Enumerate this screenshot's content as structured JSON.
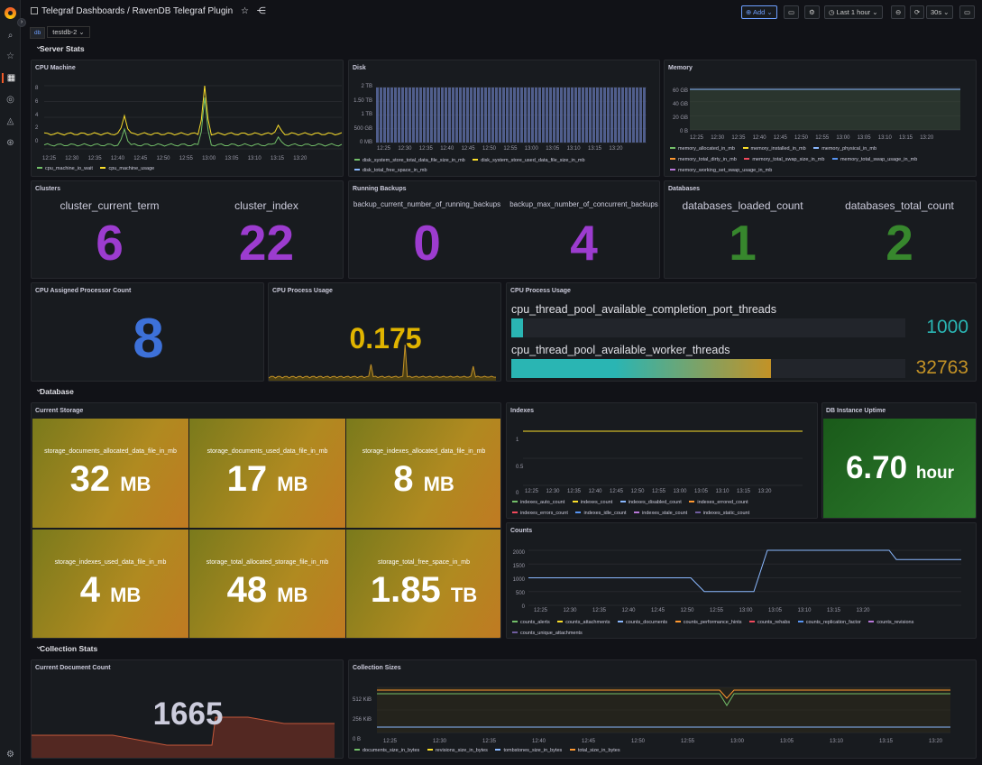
{
  "breadcrumb": {
    "root": "Telegraf Dashboards",
    "sep": " / ",
    "title": "RavenDB Telegraf Plugin"
  },
  "toolbar": {
    "add_label": "Add",
    "time_range": "Last 1 hour",
    "refresh": "30s"
  },
  "variables": {
    "label": "db",
    "value": "testdb-2"
  },
  "rows": {
    "server": "Server Stats",
    "database": "Database",
    "collection": "Collection Stats"
  },
  "panels": {
    "cpu_machine": {
      "title": "CPU Machine",
      "legend": [
        "cpu_machine_io_wait",
        "cpu_machine_usage"
      ],
      "yticks": [
        "8",
        "6",
        "4",
        "2",
        "0"
      ]
    },
    "disk": {
      "title": "Disk",
      "legend": [
        "disk_system_store_total_data_file_size_in_mb",
        "disk_system_store_used_data_file_size_in_mb",
        "disk_total_free_space_in_mb"
      ],
      "yticks": [
        "2 TB",
        "1.50 TB",
        "1 TB",
        "500 GB",
        "0 MB"
      ]
    },
    "memory": {
      "title": "Memory",
      "legend": [
        "memory_allocated_in_mb",
        "memory_installed_in_mb",
        "memory_physical_in_mb",
        "memory_total_dirty_in_mb",
        "memory_total_swap_size_in_mb",
        "memory_total_swap_usage_in_mb",
        "memory_working_set_swap_usage_in_mb"
      ],
      "yticks": [
        "60 GB",
        "40 GB",
        "20 GB",
        "0 B"
      ]
    },
    "clusters": {
      "title": "Clusters",
      "stats": [
        {
          "label": "cluster_current_term",
          "value": "6"
        },
        {
          "label": "cluster_index",
          "value": "22"
        }
      ]
    },
    "backups": {
      "title": "Running Backups",
      "stats": [
        {
          "label": "backup_current_number_of_running_backups",
          "value": "0"
        },
        {
          "label": "backup_max_number_of_concurrent_backups",
          "value": "4"
        }
      ]
    },
    "databases": {
      "title": "Databases",
      "stats": [
        {
          "label": "databases_loaded_count",
          "value": "1"
        },
        {
          "label": "databases_total_count",
          "value": "2"
        }
      ]
    },
    "cpu_assigned": {
      "title": "CPU Assigned Processor Count",
      "value": "8"
    },
    "cpu_process": {
      "title": "CPU Process Usage",
      "value": "0.175"
    },
    "cpu_threads": {
      "title": "CPU Process Usage",
      "bars": [
        {
          "label": "cpu_thread_pool_available_completion_port_threads",
          "value": "1000",
          "fill": 0.03
        },
        {
          "label": "cpu_thread_pool_available_worker_threads",
          "value": "32763",
          "fill": 0.66
        }
      ]
    },
    "current_storage": {
      "title": "Current Storage",
      "tiles": [
        {
          "label": "storage_documents_allocated_data_file_in_mb",
          "value": "32",
          "unit": "MB"
        },
        {
          "label": "storage_documents_used_data_file_in_mb",
          "value": "17",
          "unit": "MB"
        },
        {
          "label": "storage_indexes_allocated_data_file_in_mb",
          "value": "8",
          "unit": "MB"
        },
        {
          "label": "storage_indexes_used_data_file_in_mb",
          "value": "4",
          "unit": "MB"
        },
        {
          "label": "storage_total_allocated_storage_file_in_mb",
          "value": "48",
          "unit": "MB"
        },
        {
          "label": "storage_total_free_space_in_mb",
          "value": "1.85",
          "unit": "TB"
        }
      ]
    },
    "indexes": {
      "title": "Indexes",
      "legend": [
        "indexes_auto_count",
        "indexes_count",
        "indexes_disabled_count",
        "indexes_errored_count",
        "indexes_errors_count",
        "indexes_idle_count",
        "indexes_stale_count",
        "indexes_static_count"
      ],
      "yticks": [
        "1",
        "0.5",
        "0"
      ]
    },
    "uptime": {
      "title": "DB Instance Uptime",
      "value": "6.70",
      "unit": "hour"
    },
    "counts": {
      "title": "Counts",
      "legend": [
        "counts_alerts",
        "counts_attachments",
        "counts_documents",
        "counts_performance_hints",
        "counts_rehabs",
        "counts_replication_factor",
        "counts_revisions",
        "counts_unique_attachments"
      ],
      "yticks": [
        "2000",
        "1500",
        "1000",
        "500",
        "0"
      ]
    },
    "doc_count": {
      "title": "Current Document Count",
      "value": "1665"
    },
    "coll_sizes": {
      "title": "Collection Sizes",
      "legend": [
        "documents_size_in_bytes",
        "revisions_size_in_bytes",
        "tombstones_size_in_bytes",
        "total_size_in_bytes"
      ],
      "yticks": [
        "512 KiB",
        "256 KiB",
        "0 B"
      ]
    }
  },
  "time_ticks": [
    "12:25",
    "12:30",
    "12:35",
    "12:40",
    "12:45",
    "12:50",
    "12:55",
    "13:00",
    "13:05",
    "13:10",
    "13:15",
    "13:20"
  ],
  "colors": {
    "green": "#73bf69",
    "yellow": "#fade2a",
    "blue": "#8ab8ff",
    "orange": "#ff9830",
    "red": "#f2495c",
    "purple": "#9c3ccf",
    "purple_light": "#ca95e5",
    "stat_purple": "#9c3ccf",
    "stat_green": "#37872d",
    "stat_blue": "#3d71d9"
  },
  "chart_data": [
    {
      "type": "line",
      "title": "CPU Machine",
      "ylim": [
        0,
        8
      ],
      "x": [
        "12:25",
        "12:30",
        "12:35",
        "12:40",
        "12:45",
        "12:50",
        "12:55",
        "13:00",
        "13:05",
        "13:10",
        "13:15",
        "13:20"
      ],
      "series": [
        {
          "name": "cpu_machine_io_wait",
          "values": [
            0.5,
            0.3,
            0.6,
            0.4,
            2.5,
            0.3,
            0.4,
            6.5,
            0.4,
            0.5,
            1.5,
            0.4
          ]
        },
        {
          "name": "cpu_machine_usage",
          "values": [
            1.8,
            2.0,
            1.7,
            2.0,
            4.2,
            1.8,
            2.0,
            8.0,
            2.0,
            2.0,
            3.0,
            2.0
          ]
        }
      ]
    },
    {
      "type": "line",
      "title": "Counts",
      "ylim": [
        0,
        2000
      ],
      "x": [
        "12:25",
        "12:30",
        "12:35",
        "12:40",
        "12:45",
        "12:50",
        "12:55",
        "13:00",
        "13:05",
        "13:10",
        "13:15",
        "13:20"
      ],
      "series": [
        {
          "name": "counts_documents",
          "values": [
            1000,
            1000,
            1000,
            1000,
            1000,
            500,
            500,
            2000,
            2000,
            2000,
            1665,
            1665
          ]
        }
      ]
    }
  ]
}
